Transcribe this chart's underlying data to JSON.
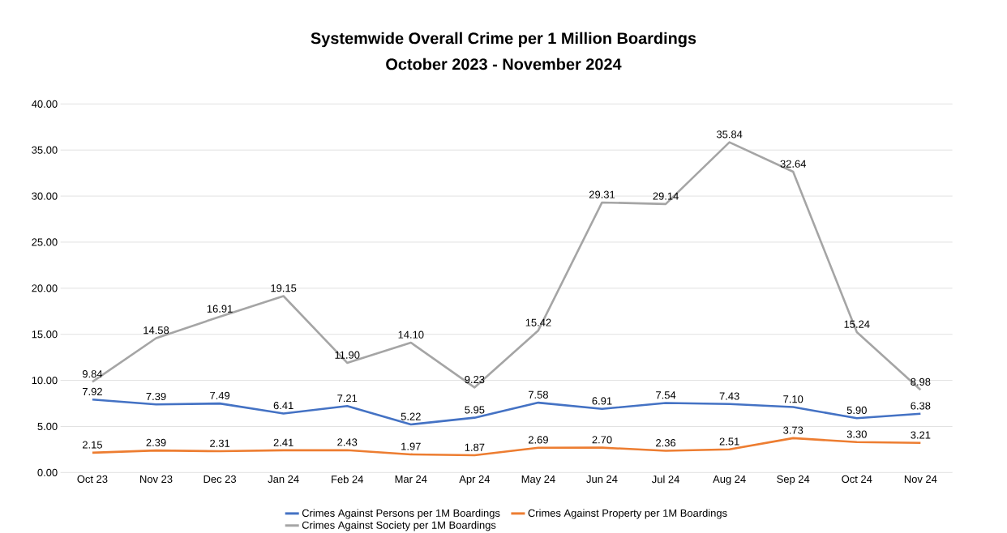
{
  "chart_data": {
    "type": "line",
    "title": "Systemwide Overall Crime per 1 Million Boardings",
    "subtitle": "October 2023 - November 2024",
    "categories": [
      "Oct 23",
      "Nov 23",
      "Dec 23",
      "Jan 24",
      "Feb 24",
      "Mar 24",
      "Apr 24",
      "May 24",
      "Jun 24",
      "Jul 24",
      "Aug 24",
      "Sep 24",
      "Oct 24",
      "Nov 24"
    ],
    "series": [
      {
        "name": "Crimes Against Persons per 1M Boardings",
        "color": "#4472c4",
        "values": [
          7.92,
          7.39,
          7.49,
          6.41,
          7.21,
          5.22,
          5.95,
          7.58,
          6.91,
          7.54,
          7.43,
          7.1,
          5.9,
          6.38
        ],
        "value_labels": [
          "7.92",
          "7.39",
          "7.49",
          "6.41",
          "7.21",
          "5.22",
          "5.95",
          "7.58",
          "6.91",
          "7.54",
          "7.43",
          "7.10",
          "5.90",
          "6.38"
        ]
      },
      {
        "name": "Crimes Against Property per 1M Boardings",
        "color": "#ed7d31",
        "values": [
          2.15,
          2.39,
          2.31,
          2.41,
          2.43,
          1.97,
          1.87,
          2.69,
          2.7,
          2.36,
          2.51,
          3.73,
          3.3,
          3.21
        ],
        "value_labels": [
          "2.15",
          "2.39",
          "2.31",
          "2.41",
          "2.43",
          "1.97",
          "1.87",
          "2.69",
          "2.70",
          "2.36",
          "2.51",
          "3.73",
          "3.30",
          "3.21"
        ]
      },
      {
        "name": "Crimes Against Society per 1M Boardings",
        "color": "#a5a5a5",
        "values": [
          9.84,
          14.58,
          16.91,
          19.15,
          11.9,
          14.1,
          9.23,
          15.42,
          29.31,
          29.14,
          35.84,
          32.64,
          15.24,
          8.98
        ],
        "value_labels": [
          "9.84",
          "14.58",
          "16.91",
          "19.15",
          "11.90",
          "14.10",
          "9.23",
          "15.42",
          "29.31",
          "29.14",
          "35.84",
          "32.64",
          "15.24",
          "8.98"
        ]
      }
    ],
    "ylim": [
      0,
      40
    ],
    "yticks": [
      {
        "value": 0,
        "label": "0.00"
      },
      {
        "value": 5,
        "label": "5.00"
      },
      {
        "value": 10,
        "label": "10.00"
      },
      {
        "value": 15,
        "label": "15.00"
      },
      {
        "value": 20,
        "label": "20.00"
      },
      {
        "value": 25,
        "label": "25.00"
      },
      {
        "value": 30,
        "label": "30.00"
      },
      {
        "value": 35,
        "label": "35.00"
      },
      {
        "value": 40,
        "label": "40.00"
      }
    ],
    "grid": "y",
    "legend": "bottom"
  }
}
